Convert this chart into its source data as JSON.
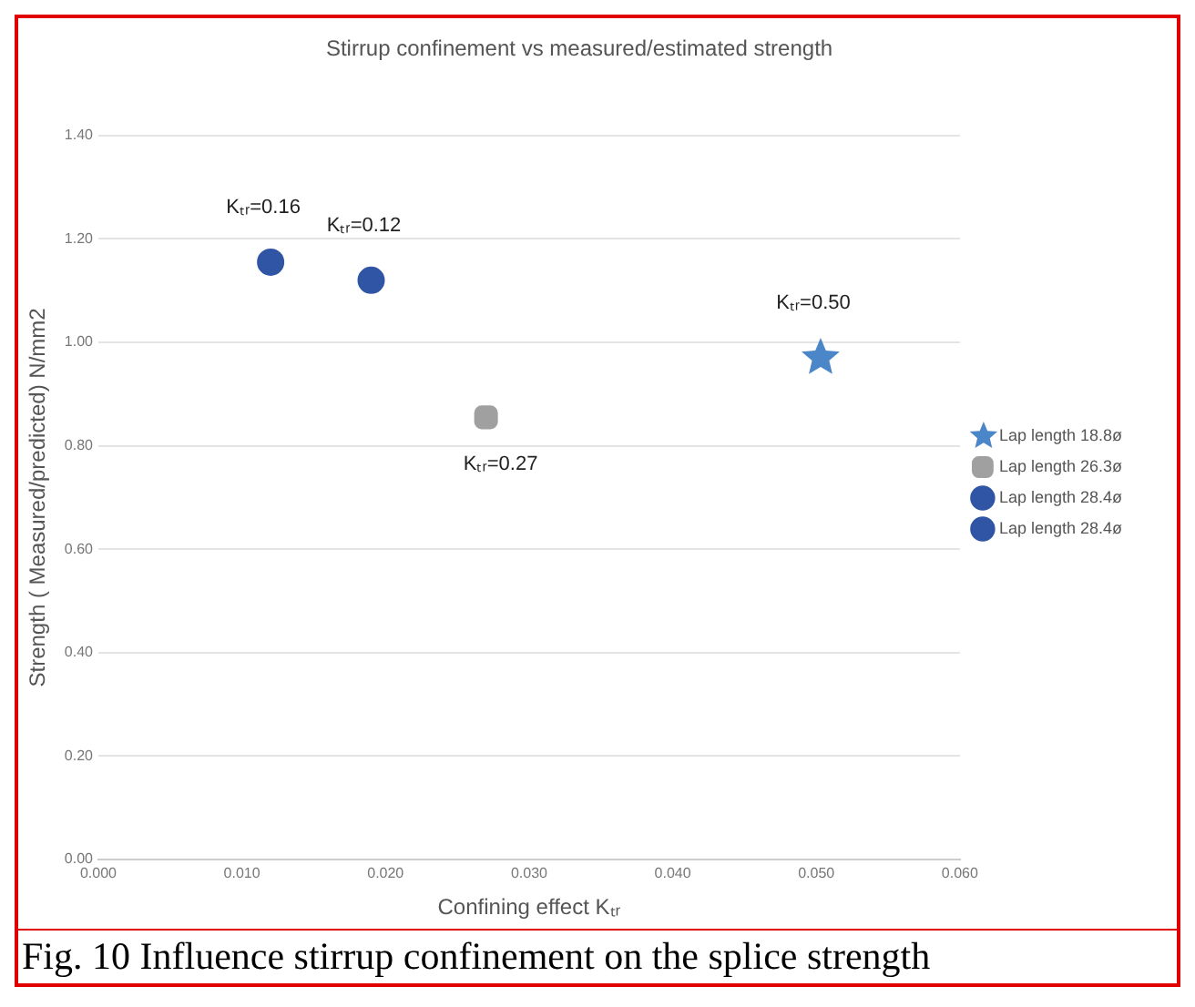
{
  "chart_data": {
    "type": "scatter",
    "title": "Stirrup confinement vs measured/estimated strength",
    "xlabel": "Confining effect Kₜᵣ",
    "ylabel": "Strength ( Measured/predicted) N/mm2",
    "series": [
      {
        "name": "Lap length 18.8ø",
        "color": "#4a86c8",
        "marker": "star",
        "x": [
          0.0503
        ],
        "values": [
          0.97
        ]
      },
      {
        "name": "Lap length 26.3ø",
        "color": "#a0a0a0",
        "marker": "square",
        "x": [
          0.027
        ],
        "values": [
          0.855
        ]
      },
      {
        "name": "Lap length 28.4ø",
        "color": "#2f55a4",
        "marker": "circle",
        "x": [
          0.019
        ],
        "values": [
          1.12
        ]
      },
      {
        "name": "Lap length 28.4ø",
        "color": "#2f55a4",
        "marker": "circle",
        "x": [
          0.012
        ],
        "values": [
          1.155
        ]
      }
    ],
    "xlim": [
      0,
      0.06
    ],
    "xticks": [
      {
        "value": 0,
        "label": "0.000"
      },
      {
        "value": 0.01,
        "label": "0.010"
      },
      {
        "value": 0.02,
        "label": "0.020"
      },
      {
        "value": 0.03,
        "label": "0.030"
      },
      {
        "value": 0.04,
        "label": "0.040"
      },
      {
        "value": 0.05,
        "label": "0.050"
      },
      {
        "value": 0.06,
        "label": "0.060"
      }
    ],
    "ylim": [
      0,
      1.4
    ],
    "yticks": [
      {
        "value": 0,
        "label": "0.00"
      },
      {
        "value": 0.2,
        "label": "0.20"
      },
      {
        "value": 0.4,
        "label": "0.40"
      },
      {
        "value": 0.6,
        "label": "0.60"
      },
      {
        "value": 0.8,
        "label": "0.80"
      },
      {
        "value": 1,
        "label": "1.00"
      },
      {
        "value": 1.2,
        "label": "1.20"
      },
      {
        "value": 1.4,
        "label": "1.40"
      }
    ],
    "grid": "y",
    "legend": "right",
    "annotations": [
      {
        "text": "Kₜᵣ=0.16",
        "x": 0.012,
        "y": 1.155
      },
      {
        "text": "Kₜᵣ=0.12",
        "x": 0.019,
        "y": 1.12
      },
      {
        "text": "Kₜᵣ=0.50",
        "x": 0.0503,
        "y": 0.97
      },
      {
        "text": "Kₜᵣ=0.27",
        "x": 0.027,
        "y": 0.855
      },
      "Fig. 10 Influence stirrup confinement on the splice strength"
    ]
  }
}
